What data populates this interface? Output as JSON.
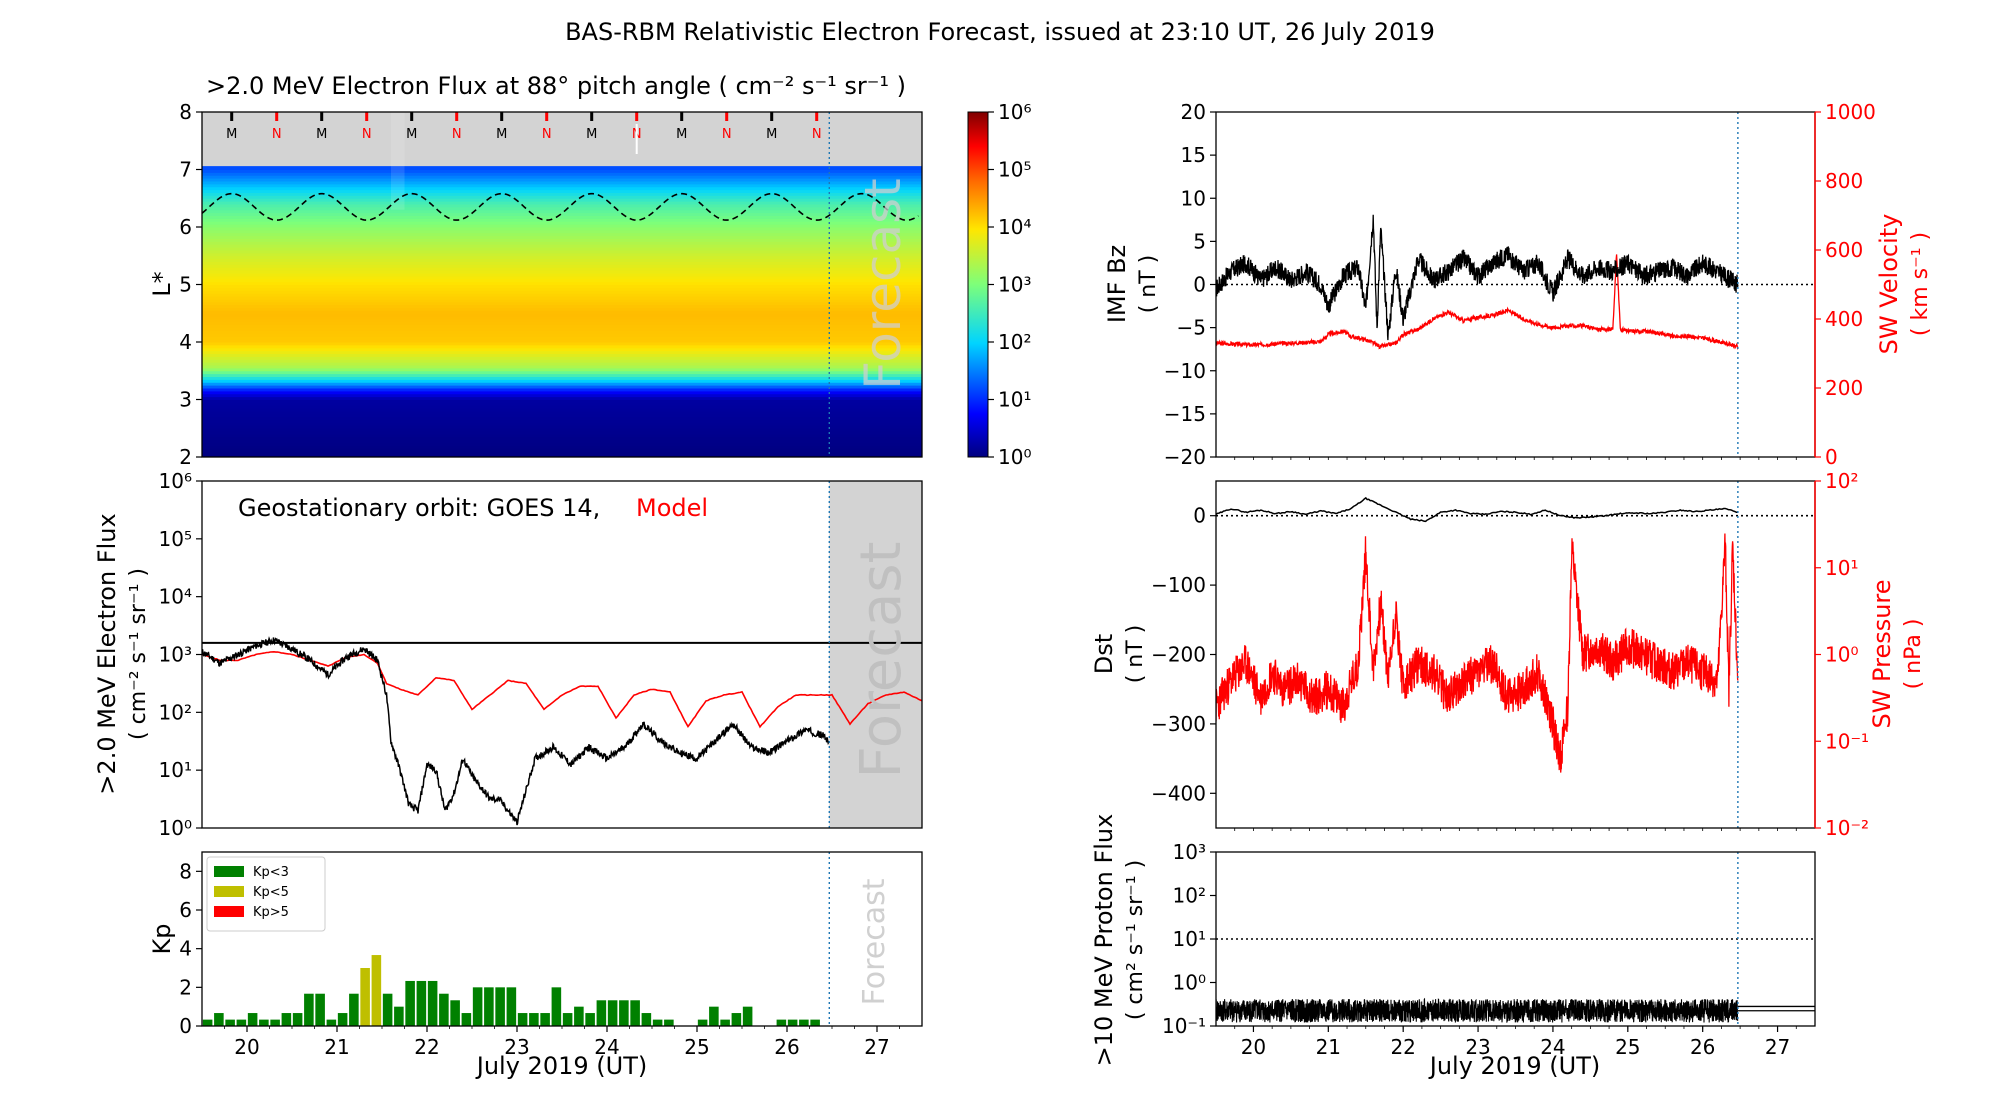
{
  "figure_title": "BAS-RBM Relativistic Electron Forecast, issued at 23:10 UT, 26 July 2019",
  "colors": {
    "observed": "#000000",
    "model": "#ff0000",
    "forecast_line": "#1f77b4",
    "forecast_shade": "#d3d3d3",
    "forecast_text": "#c0c0c0",
    "kp_low": "#008000",
    "kp_mid": "#bfbf00",
    "kp_high": "#ff0000"
  },
  "chart_data": [
    {
      "id": "lstar",
      "type": "heatmap",
      "title": ">2.0 MeV Electron Flux at 88° pitch angle ( cm⁻² s⁻¹ sr⁻¹ )",
      "ylabel": "L*",
      "xlim": [
        19.5,
        27.5
      ],
      "ylim": [
        2,
        8
      ],
      "y_ticks": [
        "2",
        "3",
        "4",
        "5",
        "6",
        "7",
        "8"
      ],
      "colorbar_ticks": [
        "10⁰",
        "10¹",
        "10²",
        "10³",
        "10⁴",
        "10⁵",
        "10⁶"
      ],
      "forecast_label": "Forecast",
      "forecast_start": 26.47,
      "flux_profile_log10": [
        [
          2.0,
          0
        ],
        [
          3.0,
          0.2
        ],
        [
          3.15,
          0.8
        ],
        [
          3.3,
          1.8
        ],
        [
          3.55,
          3.3
        ],
        [
          4.0,
          4.15
        ],
        [
          4.5,
          4.25
        ],
        [
          5.0,
          4.0
        ],
        [
          5.5,
          3.6
        ],
        [
          6.0,
          3.1
        ],
        [
          6.4,
          2.6
        ],
        [
          6.7,
          1.9
        ],
        [
          7.0,
          1.2
        ]
      ],
      "mlt_markers": [
        {
          "t": 19.83,
          "label": "M"
        },
        {
          "t": 20.33,
          "label": "N"
        },
        {
          "t": 20.83,
          "label": "M"
        },
        {
          "t": 21.33,
          "label": "N"
        },
        {
          "t": 21.83,
          "label": "M"
        },
        {
          "t": 22.33,
          "label": "N"
        },
        {
          "t": 22.83,
          "label": "M"
        },
        {
          "t": 23.33,
          "label": "N"
        },
        {
          "t": 23.83,
          "label": "M"
        },
        {
          "t": 24.33,
          "label": "N"
        },
        {
          "t": 24.83,
          "label": "M"
        },
        {
          "t": 25.33,
          "label": "N"
        },
        {
          "t": 25.83,
          "label": "M"
        },
        {
          "t": 26.33,
          "label": "N"
        }
      ]
    },
    {
      "id": "geo_flux",
      "type": "line",
      "ylabel": ">2.0 MeV Electron Flux",
      "ylabel_units": "( cm⁻² s⁻¹ sr⁻¹ )",
      "xlim": [
        19.5,
        27.5
      ],
      "ylim_log10": [
        0,
        6
      ],
      "y_ticks": [
        "10⁰",
        "10¹",
        "10²",
        "10³",
        "10⁴",
        "10⁵",
        "10⁶"
      ],
      "legend_prefix": "Geostationary orbit:   GOES 14,",
      "legend_model": "Model",
      "threshold_log10": 3.2,
      "forecast_label": "Forecast",
      "series": [
        {
          "name": "GOES 14",
          "x": [
            19.5,
            19.7,
            19.9,
            20.1,
            20.3,
            20.5,
            20.7,
            20.9,
            21.1,
            21.3,
            21.45,
            21.55,
            21.6,
            21.7,
            21.8,
            21.9,
            22.0,
            22.1,
            22.2,
            22.3,
            22.4,
            22.5,
            22.6,
            22.7,
            22.8,
            22.9,
            23.0,
            23.2,
            23.4,
            23.6,
            23.8,
            24.0,
            24.2,
            24.4,
            24.6,
            24.8,
            25.0,
            25.2,
            25.4,
            25.6,
            25.8,
            26.0,
            26.2,
            26.4,
            26.47
          ],
          "y_log10": [
            3.05,
            2.85,
            3.0,
            3.15,
            3.25,
            3.1,
            2.9,
            2.65,
            2.95,
            3.1,
            2.9,
            2.3,
            1.5,
            1.0,
            0.4,
            0.3,
            1.1,
            1.0,
            0.3,
            0.6,
            1.2,
            0.9,
            0.7,
            0.5,
            0.5,
            0.3,
            0.1,
            1.2,
            1.4,
            1.1,
            1.4,
            1.2,
            1.4,
            1.8,
            1.5,
            1.3,
            1.2,
            1.5,
            1.8,
            1.4,
            1.3,
            1.5,
            1.7,
            1.6,
            1.5
          ]
        },
        {
          "name": "Model",
          "x": [
            19.5,
            19.7,
            19.9,
            20.1,
            20.3,
            20.5,
            20.7,
            20.9,
            21.1,
            21.3,
            21.45,
            21.55,
            21.7,
            21.9,
            22.1,
            22.3,
            22.5,
            22.7,
            22.9,
            23.1,
            23.3,
            23.5,
            23.7,
            23.9,
            24.1,
            24.3,
            24.5,
            24.7,
            24.9,
            25.1,
            25.3,
            25.5,
            25.7,
            25.9,
            26.1,
            26.3,
            26.5,
            26.7,
            26.9,
            27.1,
            27.3,
            27.5
          ],
          "y_log10": [
            3.0,
            2.9,
            2.9,
            3.0,
            3.05,
            3.0,
            2.9,
            2.8,
            2.95,
            3.0,
            2.85,
            2.5,
            2.4,
            2.3,
            2.6,
            2.55,
            2.05,
            2.3,
            2.55,
            2.5,
            2.05,
            2.3,
            2.45,
            2.45,
            1.9,
            2.3,
            2.4,
            2.35,
            1.75,
            2.2,
            2.3,
            2.35,
            1.75,
            2.1,
            2.3,
            2.3,
            2.3,
            1.8,
            2.15,
            2.3,
            2.35,
            2.2
          ]
        }
      ]
    },
    {
      "id": "kp",
      "type": "bar",
      "ylabel": "Kp",
      "xlim": [
        19.5,
        27.5
      ],
      "ylim": [
        0,
        9
      ],
      "y_ticks": [
        "0",
        "2",
        "4",
        "6",
        "8"
      ],
      "legend": [
        "Kp<3",
        "Kp<5",
        "Kp>5"
      ],
      "forecast_label": "Forecast",
      "x": [
        19.5625,
        19.6875,
        19.8125,
        19.9375,
        20.0625,
        20.1875,
        20.3125,
        20.4375,
        20.5625,
        20.6875,
        20.8125,
        20.9375,
        21.0625,
        21.1875,
        21.3125,
        21.4375,
        21.5625,
        21.6875,
        21.8125,
        21.9375,
        22.0625,
        22.1875,
        22.3125,
        22.4375,
        22.5625,
        22.6875,
        22.8125,
        22.9375,
        23.0625,
        23.1875,
        23.3125,
        23.4375,
        23.5625,
        23.6875,
        23.8125,
        23.9375,
        24.0625,
        24.1875,
        24.3125,
        24.4375,
        24.5625,
        24.6875,
        24.8125,
        24.9375,
        25.0625,
        25.1875,
        25.3125,
        25.4375,
        25.5625,
        25.6875,
        25.8125,
        25.9375,
        26.0625,
        26.1875,
        26.3125
      ],
      "values": [
        0.33,
        0.67,
        0.33,
        0.33,
        0.67,
        0.33,
        0.33,
        0.67,
        0.67,
        1.67,
        1.67,
        0.33,
        0.67,
        1.67,
        3.0,
        3.67,
        1.67,
        1.0,
        2.33,
        2.33,
        2.33,
        1.67,
        1.33,
        0.67,
        2.0,
        2.0,
        2.0,
        2.0,
        0.67,
        0.67,
        0.67,
        2.0,
        0.67,
        1.0,
        0.67,
        1.33,
        1.33,
        1.33,
        1.33,
        0.67,
        0.33,
        0.33,
        0,
        0,
        0.33,
        1.0,
        0.33,
        0.67,
        1.0,
        0,
        0,
        0.33,
        0.33,
        0.33,
        0.33
      ]
    },
    {
      "id": "imf",
      "type": "line",
      "ylabel_left": "IMF Bz",
      "ylabel_left_units": "( nT )",
      "ylabel_right": "SW Velocity",
      "ylabel_right_units": "( km s⁻¹ )",
      "xlim": [
        19.5,
        27.5
      ],
      "ylim_left": [
        -20,
        20
      ],
      "ylim_right": [
        0,
        1000
      ],
      "y_ticks_left": [
        "−20",
        "−15",
        "−10",
        "−5",
        "0",
        "5",
        "10",
        "15",
        "20"
      ],
      "y_ticks_right": [
        "0",
        "200",
        "400",
        "600",
        "800",
        "1000"
      ],
      "series": [
        {
          "name": "IMF Bz",
          "axis": "left",
          "x": [
            19.5,
            19.7,
            19.9,
            20.1,
            20.3,
            20.5,
            20.7,
            20.9,
            21.0,
            21.2,
            21.4,
            21.5,
            21.6,
            21.65,
            21.7,
            21.8,
            21.9,
            22.0,
            22.2,
            22.4,
            22.6,
            22.8,
            23.0,
            23.2,
            23.4,
            23.6,
            23.8,
            24.0,
            24.2,
            24.4,
            24.6,
            24.8,
            25.0,
            25.2,
            25.4,
            25.6,
            25.8,
            26.0,
            26.2,
            26.47
          ],
          "y": [
            -0.5,
            1.5,
            2.5,
            0.5,
            2.0,
            0.5,
            1.5,
            0,
            -2.5,
            1.0,
            2.0,
            -3.0,
            8.0,
            -5.0,
            6.5,
            -6.0,
            2.0,
            -4.0,
            3.0,
            0.5,
            1.5,
            3.0,
            1.0,
            2.5,
            3.5,
            1.5,
            2.5,
            -1.0,
            3.0,
            1.0,
            2.0,
            1.5,
            2.5,
            1.0,
            1.5,
            2.0,
            1.0,
            2.5,
            1.5,
            0
          ]
        },
        {
          "name": "SW Velocity",
          "axis": "right",
          "x": [
            19.5,
            20.0,
            20.5,
            20.9,
            21.0,
            21.2,
            21.3,
            21.5,
            21.7,
            21.9,
            22.0,
            22.2,
            22.4,
            22.6,
            22.8,
            23.0,
            23.2,
            23.4,
            23.6,
            23.8,
            24.0,
            24.2,
            24.4,
            24.6,
            24.8,
            24.85,
            24.9,
            25.0,
            25.2,
            25.4,
            25.6,
            25.8,
            26.0,
            26.2,
            26.47
          ],
          "y": [
            330,
            325,
            330,
            335,
            355,
            365,
            350,
            340,
            320,
            330,
            355,
            370,
            400,
            420,
            395,
            405,
            410,
            425,
            400,
            385,
            375,
            380,
            380,
            370,
            370,
            590,
            370,
            365,
            365,
            360,
            350,
            350,
            345,
            335,
            320
          ]
        }
      ],
      "zero_line": 0
    },
    {
      "id": "dst",
      "type": "line",
      "ylabel_left": "Dst",
      "ylabel_left_units": "( nT )",
      "ylabel_right": "SW Pressure",
      "ylabel_right_units": "( nPa )",
      "xlim": [
        19.5,
        27.5
      ],
      "ylim_left": [
        -450,
        50
      ],
      "ylim_right_log10": [
        -2,
        2
      ],
      "y_ticks_left": [
        "−400",
        "−300",
        "−200",
        "−100",
        "0"
      ],
      "y_ticks_right": [
        "10⁻²",
        "10⁻¹",
        "10⁰",
        "10¹",
        "10²"
      ],
      "series": [
        {
          "name": "Dst",
          "axis": "left",
          "x": [
            19.5,
            19.7,
            19.9,
            20.1,
            20.3,
            20.5,
            20.7,
            20.9,
            21.1,
            21.3,
            21.5,
            21.7,
            21.9,
            22.1,
            22.3,
            22.5,
            22.7,
            22.9,
            23.1,
            23.3,
            23.5,
            23.7,
            23.9,
            24.1,
            24.3,
            24.5,
            24.7,
            24.9,
            25.1,
            25.3,
            25.5,
            25.7,
            25.9,
            26.1,
            26.3,
            26.47
          ],
          "y": [
            2,
            10,
            5,
            8,
            3,
            6,
            2,
            7,
            3,
            10,
            25,
            15,
            5,
            -5,
            -8,
            5,
            8,
            3,
            2,
            6,
            5,
            2,
            8,
            0,
            -3,
            -2,
            0,
            3,
            4,
            3,
            5,
            8,
            6,
            8,
            10,
            5
          ]
        },
        {
          "name": "SW Pressure",
          "axis": "right",
          "x": [
            19.5,
            19.7,
            19.9,
            20.1,
            20.25,
            20.4,
            20.6,
            20.8,
            21.0,
            21.2,
            21.4,
            21.5,
            21.6,
            21.7,
            21.8,
            21.9,
            22.0,
            22.2,
            22.4,
            22.6,
            22.8,
            23.0,
            23.2,
            23.4,
            23.6,
            23.8,
            24.0,
            24.1,
            24.2,
            24.25,
            24.4,
            24.6,
            24.8,
            25.0,
            25.2,
            25.4,
            25.6,
            25.8,
            26.0,
            26.2,
            26.3,
            26.35,
            26.4,
            26.47
          ],
          "y_log10": [
            -0.6,
            -0.3,
            -0.1,
            -0.5,
            -0.2,
            -0.4,
            -0.3,
            -0.5,
            -0.4,
            -0.6,
            -0.1,
            1.2,
            -0.2,
            0.6,
            -0.3,
            0.5,
            -0.4,
            -0.1,
            -0.2,
            -0.5,
            -0.3,
            -0.2,
            -0.1,
            -0.5,
            -0.4,
            -0.2,
            -0.8,
            -1.2,
            -0.6,
            1.25,
            0.0,
            0.1,
            -0.1,
            0.1,
            0.0,
            -0.1,
            -0.2,
            -0.1,
            -0.2,
            -0.3,
            1.3,
            -0.4,
            1.25,
            -0.3
          ]
        }
      ],
      "zero_line": 0
    },
    {
      "id": "proton",
      "type": "line",
      "ylabel": ">10 MeV Proton Flux",
      "ylabel_units": "( cm² s⁻¹ sr⁻¹ )",
      "xlim": [
        19.5,
        27.5
      ],
      "ylim_log10": [
        -1,
        3
      ],
      "y_ticks": [
        "10⁻¹",
        "10⁰",
        "10¹",
        "10²",
        "10³"
      ],
      "x_ticks": [
        "20",
        "21",
        "22",
        "23",
        "24",
        "25",
        "26",
        "27"
      ],
      "xlabel": "July 2019 (UT)",
      "threshold_log10": 1,
      "series": [
        {
          "name": ">10 MeV protons",
          "x": [
            19.5,
            26.47
          ],
          "y_log10_band": [
            -0.92,
            -0.38
          ]
        },
        {
          "name": "forecast",
          "x": [
            26.47,
            27.5
          ],
          "y_log10": [
            -0.6
          ]
        }
      ]
    }
  ],
  "x_ticks": [
    "20",
    "21",
    "22",
    "23",
    "24",
    "25",
    "26",
    "27"
  ],
  "xlabel": "July 2019 (UT)"
}
